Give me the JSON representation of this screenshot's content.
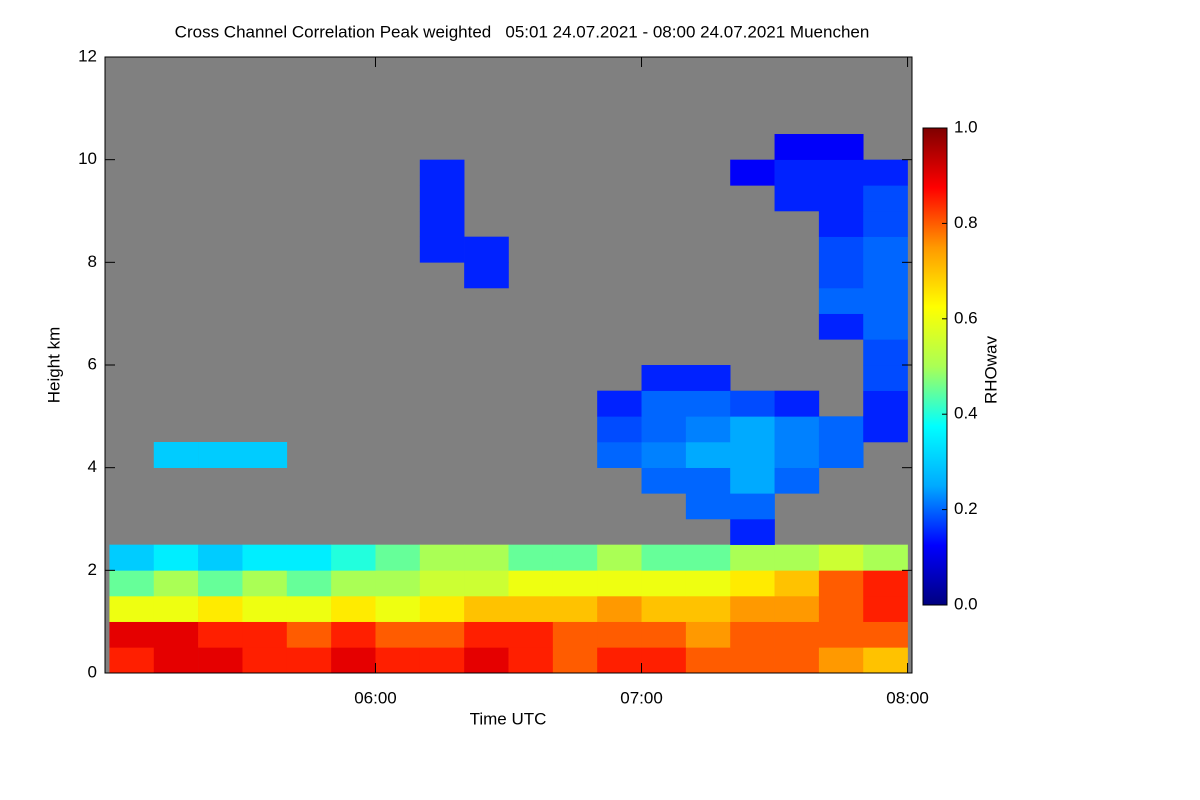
{
  "chart_data": {
    "type": "heatmap",
    "title": "Cross Channel Correlation Peak weighted   05:01 24.07.2021 - 08:00 24.07.2021 Muenchen",
    "xlabel": "Time UTC",
    "ylabel": "Height km",
    "x": [
      305,
      315,
      325,
      335,
      345,
      355,
      365,
      375,
      385,
      395,
      405,
      415,
      425,
      435,
      445,
      455,
      465,
      475
    ],
    "y": [
      0.25,
      0.75,
      1.25,
      1.75,
      2.25,
      2.75,
      3.25,
      3.75,
      4.25,
      4.75,
      5.25,
      5.75,
      6.25,
      6.75,
      7.25,
      7.75,
      8.25,
      8.75,
      9.25,
      9.75,
      10.25
    ],
    "z": [
      [
        0.85,
        0.9,
        0.9,
        0.85,
        0.85,
        0.9,
        0.85,
        0.85,
        0.9,
        0.85,
        0.8,
        0.85,
        0.85,
        0.8,
        0.8,
        0.8,
        0.75,
        0.7
      ],
      [
        0.9,
        0.9,
        0.85,
        0.85,
        0.8,
        0.85,
        0.8,
        0.8,
        0.85,
        0.85,
        0.8,
        0.8,
        0.8,
        0.75,
        0.8,
        0.8,
        0.8,
        0.8
      ],
      [
        0.6,
        0.6,
        0.65,
        0.6,
        0.6,
        0.65,
        0.6,
        0.65,
        0.7,
        0.7,
        0.7,
        0.75,
        0.7,
        0.7,
        0.75,
        0.75,
        0.8,
        0.85
      ],
      [
        0.45,
        0.5,
        0.45,
        0.5,
        0.45,
        0.5,
        0.5,
        0.55,
        0.55,
        0.6,
        0.6,
        0.6,
        0.6,
        0.6,
        0.65,
        0.7,
        0.8,
        0.85
      ],
      [
        0.3,
        0.35,
        0.3,
        0.35,
        0.35,
        0.4,
        0.45,
        0.5,
        0.5,
        0.45,
        0.45,
        0.5,
        0.45,
        0.45,
        0.5,
        0.5,
        0.55,
        0.5
      ],
      [
        null,
        null,
        null,
        null,
        null,
        null,
        null,
        null,
        null,
        null,
        null,
        null,
        null,
        null,
        0.15,
        null,
        null,
        null
      ],
      [
        null,
        null,
        null,
        null,
        null,
        null,
        null,
        null,
        null,
        null,
        null,
        null,
        null,
        0.2,
        0.2,
        null,
        null,
        null
      ],
      [
        null,
        null,
        null,
        null,
        null,
        null,
        null,
        null,
        null,
        null,
        null,
        null,
        0.2,
        0.2,
        0.25,
        0.2,
        null,
        null
      ],
      [
        null,
        0.3,
        0.3,
        0.3,
        null,
        null,
        null,
        null,
        null,
        null,
        null,
        0.2,
        0.22,
        0.25,
        0.25,
        0.22,
        0.2,
        null
      ],
      [
        null,
        null,
        null,
        null,
        null,
        null,
        null,
        null,
        null,
        null,
        null,
        0.18,
        0.2,
        0.22,
        0.25,
        0.22,
        0.2,
        0.15
      ],
      [
        null,
        null,
        null,
        null,
        null,
        null,
        null,
        null,
        null,
        null,
        null,
        0.15,
        0.2,
        0.2,
        0.18,
        0.15,
        null,
        0.15
      ],
      [
        null,
        null,
        null,
        null,
        null,
        null,
        null,
        null,
        null,
        null,
        null,
        null,
        0.15,
        0.15,
        null,
        null,
        null,
        0.18
      ],
      [
        null,
        null,
        null,
        null,
        null,
        null,
        null,
        null,
        null,
        null,
        null,
        null,
        null,
        null,
        null,
        null,
        null,
        0.18
      ],
      [
        null,
        null,
        null,
        null,
        null,
        null,
        null,
        null,
        null,
        null,
        null,
        null,
        null,
        null,
        null,
        null,
        0.15,
        0.2
      ],
      [
        null,
        null,
        null,
        null,
        null,
        null,
        null,
        null,
        null,
        null,
        null,
        null,
        null,
        null,
        null,
        null,
        0.2,
        0.2
      ],
      [
        null,
        null,
        null,
        null,
        null,
        null,
        null,
        null,
        0.15,
        null,
        null,
        null,
        null,
        null,
        null,
        null,
        0.18,
        0.2
      ],
      [
        null,
        null,
        null,
        null,
        null,
        null,
        null,
        0.15,
        0.15,
        null,
        null,
        null,
        null,
        null,
        null,
        null,
        0.18,
        0.2
      ],
      [
        null,
        null,
        null,
        null,
        null,
        null,
        null,
        0.15,
        null,
        null,
        null,
        null,
        null,
        null,
        null,
        null,
        0.15,
        0.18
      ],
      [
        null,
        null,
        null,
        null,
        null,
        null,
        null,
        0.15,
        null,
        null,
        null,
        null,
        null,
        null,
        null,
        0.15,
        0.15,
        0.18
      ],
      [
        null,
        null,
        null,
        null,
        null,
        null,
        null,
        0.15,
        null,
        null,
        null,
        null,
        null,
        null,
        0.12,
        0.15,
        0.15,
        0.15
      ],
      [
        null,
        null,
        null,
        null,
        null,
        null,
        null,
        null,
        null,
        null,
        null,
        null,
        null,
        null,
        null,
        0.12,
        0.12,
        null
      ]
    ],
    "xlim": [
      299,
      481
    ],
    "xticks": [
      {
        "value": 360,
        "label": "06:00"
      },
      {
        "value": 420,
        "label": "07:00"
      },
      {
        "value": 480,
        "label": "08:00"
      }
    ],
    "ylim": [
      0,
      12
    ],
    "yticks": [
      0,
      2,
      4,
      6,
      8,
      10,
      12
    ],
    "missing_color": "#808080",
    "colorbar": {
      "label": "RHOwav",
      "lim": [
        0,
        1
      ],
      "ticks": [
        {
          "value": 0,
          "label": "0.0"
        },
        0.2,
        0.4,
        0.6,
        0.8,
        {
          "value": 1,
          "label": "1.0"
        }
      ],
      "colorscale": [
        "#00007f",
        "#0000ff",
        "#00aaff",
        "#00ffff",
        "#aaff55",
        "#ffff00",
        "#ff9900",
        "#ff0000",
        "#7f0000"
      ]
    }
  }
}
